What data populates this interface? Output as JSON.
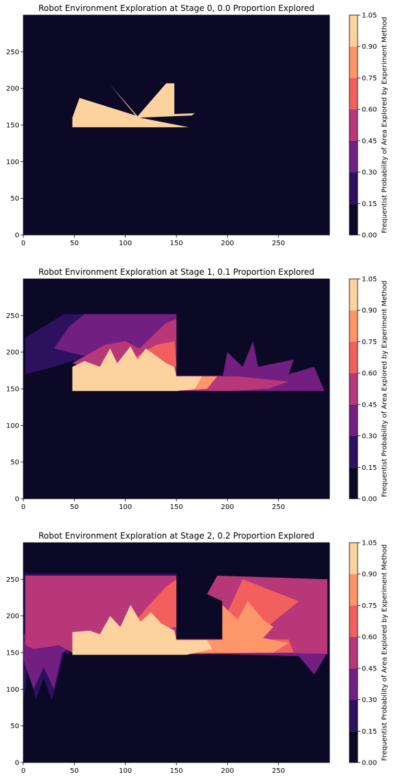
{
  "colors": {
    "bands": [
      "#0c0927",
      "#2c115f",
      "#721f81",
      "#b73779",
      "#f1605d",
      "#fd9668",
      "#fcd39e"
    ],
    "background_band_index": 0
  },
  "chart_data": [
    {
      "type": "heatmap",
      "title": "Robot Environment Exploration at Stage 0, 0.0 Proportion Explored",
      "colorbar_label": "Frequentist Probability of Area Explored by Experiment Method",
      "xlim": [
        0,
        300
      ],
      "ylim": [
        0,
        300
      ],
      "x_ticks": [
        0,
        50,
        100,
        150,
        200,
        250
      ],
      "y_ticks": [
        0,
        50,
        100,
        150,
        200,
        250
      ],
      "colorbar_levels": [
        0.0,
        0.15,
        0.3,
        0.45,
        0.6,
        0.75,
        0.9,
        1.05
      ],
      "colorbar_tick_labels": [
        "0.00",
        "0.15",
        "0.30",
        "0.45",
        "0.60",
        "0.75",
        "0.90",
        "1.05"
      ],
      "regions": [
        {
          "band": 6,
          "points": [
            [
              48,
              147
            ],
            [
              48,
              160
            ],
            [
              55,
              187
            ],
            [
              110,
              163
            ],
            [
              85,
              205
            ],
            [
              112,
              162
            ],
            [
              110,
              207
            ],
            [
              112,
              162
            ],
            [
              140,
              207
            ],
            [
              148,
              207
            ],
            [
              148,
              165
            ],
            [
              168,
              166
            ],
            [
              165,
              163
            ],
            [
              114,
              160
            ],
            [
              162,
              147
            ]
          ]
        }
      ]
    },
    {
      "type": "heatmap",
      "title": "Robot Environment Exploration at Stage 1, 0.1 Proportion Explored",
      "colorbar_label": "Frequentist Probability of Area Explored by Experiment Method",
      "xlim": [
        0,
        300
      ],
      "ylim": [
        0,
        300
      ],
      "x_ticks": [
        0,
        50,
        100,
        150,
        200,
        250
      ],
      "y_ticks": [
        0,
        50,
        100,
        150,
        200,
        250
      ],
      "colorbar_levels": [
        0.0,
        0.15,
        0.3,
        0.45,
        0.6,
        0.75,
        0.9,
        1.05
      ],
      "colorbar_tick_labels": [
        "0.00",
        "0.15",
        "0.30",
        "0.45",
        "0.60",
        "0.75",
        "0.90",
        "1.05"
      ],
      "regions": [
        {
          "band": 1,
          "points": [
            [
              2,
              170
            ],
            [
              2,
              220
            ],
            [
              20,
              235
            ],
            [
              40,
              252
            ],
            [
              150,
              252
            ],
            [
              150,
              215
            ],
            [
              110,
              190
            ],
            [
              48,
              188
            ],
            [
              30,
              180
            ]
          ]
        },
        {
          "band": 2,
          "points": [
            [
              30,
              205
            ],
            [
              45,
              235
            ],
            [
              60,
              252
            ],
            [
              150,
              252
            ],
            [
              150,
              215
            ],
            [
              110,
              190
            ],
            [
              60,
              195
            ]
          ]
        },
        {
          "band": 3,
          "points": [
            [
              48,
              185
            ],
            [
              80,
              210
            ],
            [
              100,
              215
            ],
            [
              120,
              200
            ],
            [
              150,
              190
            ],
            [
              150,
              165
            ],
            [
              110,
              170
            ],
            [
              60,
              180
            ]
          ]
        },
        {
          "band": 2,
          "points": [
            [
              148,
              147
            ],
            [
              148,
              168
            ],
            [
              195,
              168
            ],
            [
              195,
              147
            ]
          ]
        },
        {
          "band": 2,
          "points": [
            [
              195,
              147
            ],
            [
              195,
              165
            ],
            [
              200,
              200
            ],
            [
              215,
              180
            ],
            [
              225,
              215
            ],
            [
              230,
              180
            ],
            [
              265,
              190
            ],
            [
              260,
              170
            ],
            [
              285,
              180
            ],
            [
              295,
              147
            ]
          ]
        },
        {
          "band": 3,
          "points": [
            [
              150,
              148
            ],
            [
              150,
              167
            ],
            [
              210,
              167
            ],
            [
              260,
              160
            ],
            [
              240,
              150
            ],
            [
              200,
              147
            ]
          ]
        },
        {
          "band": 4,
          "points": [
            [
              130,
              155
            ],
            [
              130,
              167
            ],
            [
              175,
              167
            ],
            [
              175,
              150
            ],
            [
              155,
              148
            ]
          ]
        },
        {
          "band": 3,
          "points": [
            [
              110,
              200
            ],
            [
              125,
              220
            ],
            [
              140,
              240
            ],
            [
              150,
              245
            ],
            [
              150,
              190
            ],
            [
              130,
              195
            ]
          ]
        },
        {
          "band": 4,
          "points": [
            [
              100,
              185
            ],
            [
              130,
              210
            ],
            [
              148,
              215
            ],
            [
              150,
              180
            ],
            [
              130,
              185
            ]
          ]
        },
        {
          "band": 5,
          "points": [
            [
              150,
              148
            ],
            [
              150,
              167
            ],
            [
              190,
              167
            ],
            [
              180,
              150
            ],
            [
              160,
              148
            ]
          ]
        },
        {
          "band": 6,
          "points": [
            [
              48,
              147
            ],
            [
              48,
              180
            ],
            [
              60,
              188
            ],
            [
              75,
              180
            ],
            [
              85,
              205
            ],
            [
              92,
              185
            ],
            [
              105,
              208
            ],
            [
              112,
              190
            ],
            [
              120,
              205
            ],
            [
              130,
              195
            ],
            [
              140,
              185
            ],
            [
              148,
              180
            ],
            [
              150,
              167
            ],
            [
              175,
              167
            ],
            [
              168,
              150
            ],
            [
              150,
              147
            ]
          ]
        }
      ]
    },
    {
      "type": "heatmap",
      "title": "Robot Environment Exploration at Stage 2, 0.2 Proportion Explored",
      "colorbar_label": "Frequentist Probability of Area Explored by Experiment Method",
      "xlim": [
        0,
        300
      ],
      "ylim": [
        0,
        300
      ],
      "x_ticks": [
        0,
        50,
        100,
        150,
        200,
        250
      ],
      "y_ticks": [
        0,
        50,
        100,
        150,
        200,
        250
      ],
      "colorbar_levels": [
        0.0,
        0.15,
        0.3,
        0.45,
        0.6,
        0.75,
        0.9,
        1.05
      ],
      "colorbar_tick_labels": [
        "0.00",
        "0.15",
        "0.30",
        "0.45",
        "0.60",
        "0.75",
        "0.90",
        "1.05"
      ],
      "regions": [
        {
          "band": 1,
          "points": [
            [
              0,
              80
            ],
            [
              0,
              258
            ],
            [
              150,
              258
            ],
            [
              150,
              168
            ],
            [
              45,
              168
            ],
            [
              45,
              147
            ],
            [
              40,
              150
            ],
            [
              28,
              85
            ],
            [
              20,
              115
            ],
            [
              12,
              85
            ],
            [
              5,
              140
            ]
          ]
        },
        {
          "band": 2,
          "points": [
            [
              0,
              140
            ],
            [
              0,
              175
            ],
            [
              40,
              175
            ],
            [
              45,
              155
            ],
            [
              38,
              150
            ],
            [
              30,
              100
            ],
            [
              20,
              130
            ],
            [
              10,
              100
            ]
          ]
        },
        {
          "band": 1,
          "points": [
            [
              150,
              148
            ],
            [
              150,
              168
            ],
            [
              195,
              168
            ],
            [
              195,
              147
            ]
          ]
        },
        {
          "band": 2,
          "points": [
            [
              195,
              148
            ],
            [
              195,
              250
            ],
            [
              260,
              250
            ],
            [
              290,
              245
            ],
            [
              298,
              220
            ],
            [
              298,
              150
            ],
            [
              285,
              120
            ],
            [
              270,
              145
            ]
          ]
        },
        {
          "band": 3,
          "points": [
            [
              2,
              160
            ],
            [
              2,
              255
            ],
            [
              150,
              255
            ],
            [
              150,
              168
            ],
            [
              48,
              168
            ],
            [
              48,
              150
            ],
            [
              35,
              160
            ],
            [
              10,
              155
            ]
          ]
        },
        {
          "band": 3,
          "points": [
            [
              148,
              148
            ],
            [
              148,
              168
            ],
            [
              195,
              168
            ],
            [
              195,
              220
            ],
            [
              180,
              230
            ],
            [
              190,
              255
            ],
            [
              298,
              250
            ],
            [
              298,
              148
            ],
            [
              250,
              150
            ]
          ]
        },
        {
          "band": 4,
          "points": [
            [
              100,
              175
            ],
            [
              120,
              210
            ],
            [
              140,
              240
            ],
            [
              150,
              250
            ],
            [
              150,
              185
            ]
          ]
        },
        {
          "band": 4,
          "points": [
            [
              195,
              190
            ],
            [
              215,
              250
            ],
            [
              270,
              220
            ],
            [
              230,
              175
            ],
            [
              195,
              165
            ]
          ]
        },
        {
          "band": 4,
          "points": [
            [
              148,
              148
            ],
            [
              148,
              168
            ],
            [
              260,
              168
            ],
            [
              265,
              150
            ]
          ]
        },
        {
          "band": 5,
          "points": [
            [
              150,
              150
            ],
            [
              150,
              167
            ],
            [
              195,
              167
            ],
            [
              195,
              215
            ],
            [
              210,
              195
            ],
            [
              220,
              220
            ],
            [
              235,
              195
            ],
            [
              245,
              185
            ],
            [
              235,
              170
            ],
            [
              260,
              163
            ],
            [
              245,
              150
            ]
          ]
        },
        {
          "band": 6,
          "points": [
            [
              48,
              147
            ],
            [
              48,
              178
            ],
            [
              65,
              180
            ],
            [
              75,
              175
            ],
            [
              85,
              200
            ],
            [
              95,
              185
            ],
            [
              105,
              215
            ],
            [
              115,
              192
            ],
            [
              125,
              205
            ],
            [
              135,
              190
            ],
            [
              148,
              180
            ],
            [
              150,
              167
            ],
            [
              180,
              167
            ],
            [
              185,
              155
            ],
            [
              160,
              147
            ]
          ]
        }
      ]
    }
  ]
}
